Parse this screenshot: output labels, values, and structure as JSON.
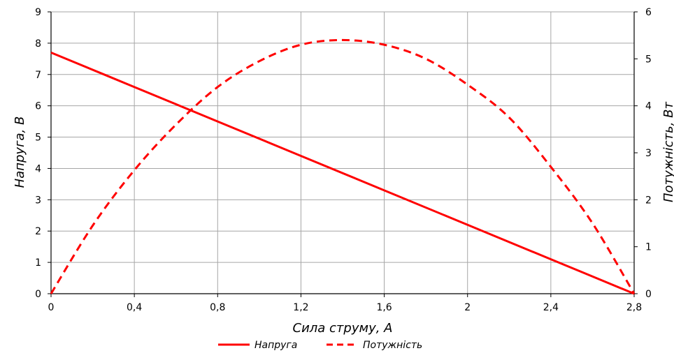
{
  "chart_data": {
    "type": "line",
    "xlabel": "Сила струму, А",
    "ylabel": "Напруга, В",
    "y2label": "Потужність, Вт",
    "xlim": [
      0,
      2.8
    ],
    "ylim": [
      0,
      9
    ],
    "y2lim": [
      0,
      6
    ],
    "x_ticks": [
      "0",
      "0,4",
      "0,8",
      "1,2",
      "1,6",
      "2",
      "2,4",
      "2,8"
    ],
    "y_ticks": [
      "0",
      "1",
      "2",
      "3",
      "4",
      "5",
      "6",
      "7",
      "8",
      "9"
    ],
    "y2_ticks": [
      "0",
      "1",
      "2",
      "3",
      "4",
      "5",
      "6"
    ],
    "grid": true,
    "legend_position": "bottom",
    "colors": {
      "series": "#ff0000",
      "grid": "#a6a6a6",
      "axis": "#000000"
    },
    "series": [
      {
        "name": "Напруга",
        "axis": "left",
        "style": "solid",
        "x": [
          0,
          0.4,
          0.8,
          1.2,
          1.6,
          2.0,
          2.4,
          2.8
        ],
        "values": [
          7.7,
          6.6,
          5.5,
          4.4,
          3.3,
          2.2,
          1.1,
          0.0
        ]
      },
      {
        "name": "Потужність",
        "axis": "right",
        "style": "dashed",
        "x": [
          0,
          0.2,
          0.4,
          0.6,
          0.8,
          1.0,
          1.2,
          1.4,
          1.6,
          1.8,
          2.0,
          2.2,
          2.4,
          2.6,
          2.8
        ],
        "values": [
          0,
          1.45,
          2.63,
          3.6,
          4.4,
          4.95,
          5.3,
          5.4,
          5.3,
          5.0,
          4.45,
          3.75,
          2.7,
          1.5,
          0
        ]
      }
    ]
  }
}
